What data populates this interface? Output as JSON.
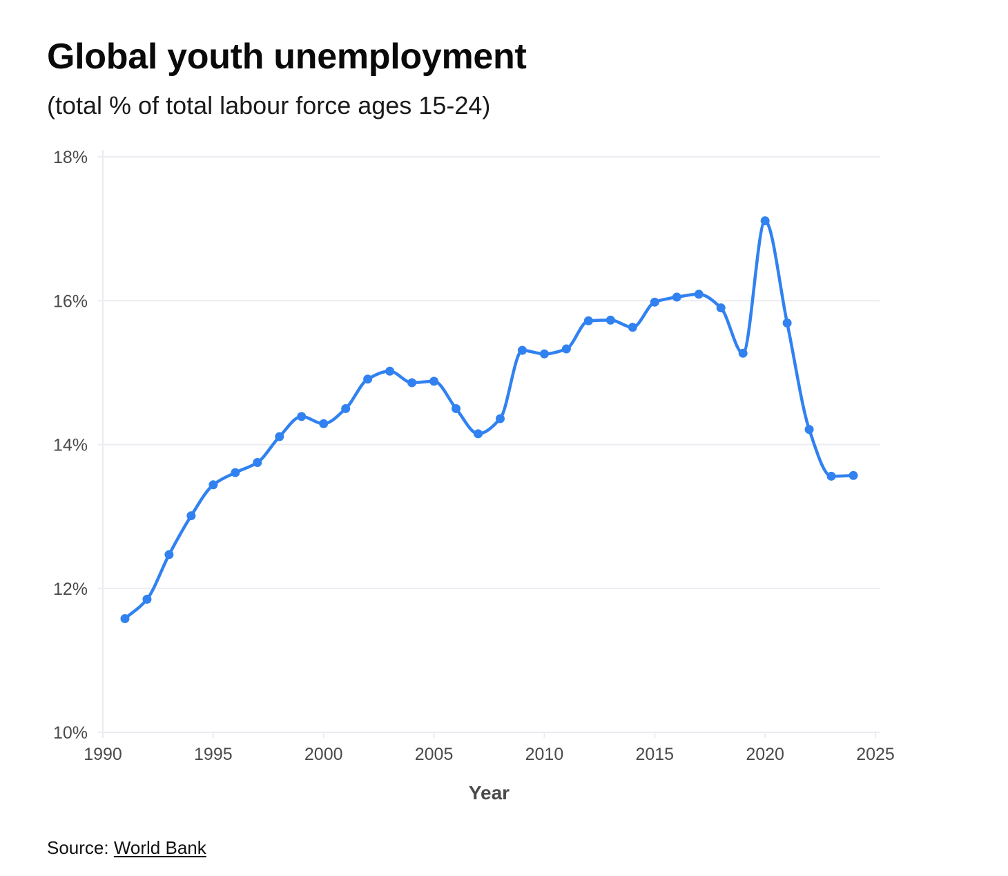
{
  "header": {
    "title": "Global youth unemployment",
    "subtitle": "(total % of total labour force ages 15-24)"
  },
  "footer": {
    "source_prefix": "Source: ",
    "source_link": "World Bank"
  },
  "colors": {
    "line": "#3182f0",
    "grid": "#ecebf1",
    "axis_text": "#4a4a4a"
  },
  "chart_data": {
    "type": "line",
    "title": "Global youth unemployment",
    "subtitle": "(total % of total labour force ages 15-24)",
    "xlabel": "Year",
    "ylabel": "",
    "xlim": [
      1990,
      2025
    ],
    "ylim": [
      10,
      18
    ],
    "x_ticks": [
      1990,
      1995,
      2000,
      2005,
      2010,
      2015,
      2020,
      2025
    ],
    "y_ticks": [
      10,
      12,
      14,
      16,
      18
    ],
    "y_tick_labels": [
      "10%",
      "12%",
      "14%",
      "16%",
      "18%"
    ],
    "grid": "horizontal",
    "legend": "none",
    "x": [
      1991,
      1992,
      1993,
      1994,
      1995,
      1996,
      1997,
      1998,
      1999,
      2000,
      2001,
      2002,
      2003,
      2004,
      2005,
      2006,
      2007,
      2008,
      2009,
      2010,
      2011,
      2012,
      2013,
      2014,
      2015,
      2016,
      2017,
      2018,
      2019,
      2020,
      2021,
      2022,
      2023,
      2024
    ],
    "values": [
      11.58,
      11.85,
      12.47,
      13.01,
      13.44,
      13.61,
      13.75,
      14.11,
      14.39,
      14.29,
      14.5,
      14.91,
      15.02,
      14.86,
      14.88,
      14.5,
      14.15,
      14.36,
      15.31,
      15.26,
      15.33,
      15.72,
      15.73,
      15.63,
      15.98,
      16.05,
      16.09,
      15.9,
      15.27,
      17.11,
      15.69,
      14.21,
      13.56,
      13.57
    ]
  }
}
